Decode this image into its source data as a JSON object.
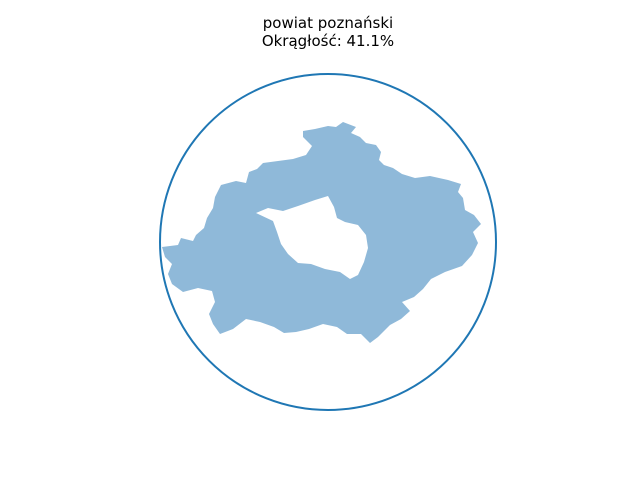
{
  "chart_data": {
    "type": "shape",
    "title_line1": "powiat poznański",
    "title_line2": "Okrągłość: 41.1%",
    "roundness_percent": 41.1,
    "axes_visible": false,
    "series": [
      {
        "name": "enclosing-circle",
        "color": "#1f77b4"
      },
      {
        "name": "district-shape",
        "color": "#8fb9d9"
      }
    ]
  }
}
